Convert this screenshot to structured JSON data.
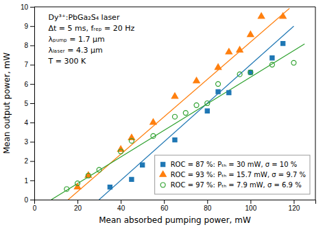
{
  "chart_data": {
    "type": "scatter",
    "xlabel": "Mean absorbed pumping power, mW",
    "ylabel": "Mean output power, mW",
    "xlim": [
      0,
      130
    ],
    "ylim": [
      0,
      10
    ],
    "xticks": [
      0,
      20,
      40,
      60,
      80,
      100,
      120
    ],
    "yticks": [
      0,
      1,
      2,
      3,
      4,
      5,
      6,
      7,
      8,
      9,
      10
    ],
    "grid": false,
    "legend": "lower right",
    "annotations": [
      "Dy³⁺:PbGa₂S₄ laser",
      "Δt = 5 ms, fᵣₑₚ = 20 Hz",
      "λₚᵤₘₚ = 1.7 μm",
      "λₗₐₛₑᵣ = 4.3 μm",
      "T = 300 K"
    ],
    "series": [
      {
        "name": "ROC = 87 %: Pₜₕ = 30 mW, σ = 10 %",
        "marker": "square",
        "x": [
          35,
          45,
          50,
          65,
          80,
          85,
          90,
          100,
          110,
          115
        ],
        "values": [
          0.65,
          1.05,
          1.8,
          3.1,
          4.6,
          5.6,
          5.55,
          6.6,
          7.35,
          8.1
        ],
        "fit_x": [
          30,
          120
        ],
        "fit_values": [
          0,
          9
        ]
      },
      {
        "name": "ROC = 93 %: Pₜₕ = 15.7 mW, σ = 9.7 %",
        "marker": "triangle-up",
        "x": [
          20,
          25,
          40,
          45,
          55,
          65,
          75,
          85,
          90,
          95,
          100,
          105,
          115
        ],
        "values": [
          0.65,
          1.25,
          2.6,
          3.2,
          4.0,
          5.35,
          6.15,
          6.85,
          7.65,
          7.75,
          8.55,
          9.5,
          9.5
        ],
        "fit_x": [
          15.7,
          118
        ],
        "fit_values": [
          -0.0021,
          9.921
        ]
      },
      {
        "name": "ROC = 97 %: Pₜₕ = 7.9 mW, σ = 6.9 %",
        "marker": "circle-open",
        "x": [
          15,
          20,
          25,
          30,
          40,
          45,
          55,
          65,
          70,
          75,
          80,
          85,
          95,
          100,
          110,
          120
        ],
        "values": [
          0.55,
          0.85,
          1.25,
          1.55,
          2.5,
          3.05,
          3.3,
          4.3,
          4.5,
          4.9,
          5.0,
          6.0,
          6.5,
          6.6,
          7.0,
          7.1
        ],
        "fit_x": [
          7.9,
          125
        ],
        "fit_values": [
          0.0001,
          8.08
        ]
      }
    ]
  }
}
